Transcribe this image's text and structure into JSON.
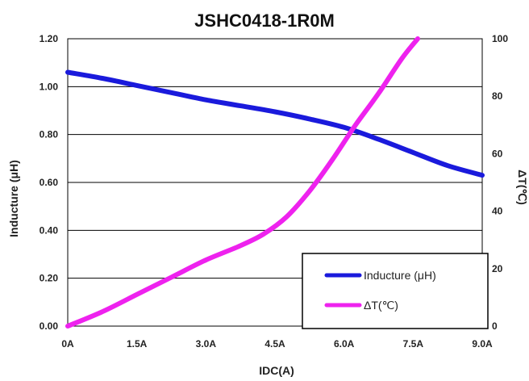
{
  "chart_data": {
    "type": "line",
    "title": "JSHC0418-1R0M",
    "xlabel": "IDC(A)",
    "ylabel": "Inducture (μH)",
    "y2label": "ΔT(℃)",
    "xlim": [
      0,
      9
    ],
    "ylim": [
      0,
      1.2
    ],
    "y2lim": [
      0,
      100
    ],
    "x_ticks": [
      0,
      1.5,
      3.0,
      4.5,
      6.0,
      7.5,
      9.0
    ],
    "x_tick_labels": [
      "0A",
      "1.5A",
      "3.0A",
      "4.5A",
      "6.0A",
      "7.5A",
      "9.0A"
    ],
    "y_ticks": [
      0,
      0.2,
      0.4,
      0.6,
      0.8,
      1.0,
      1.2
    ],
    "y_tick_labels": [
      "0.00",
      "0.20",
      "0.40",
      "0.60",
      "0.80",
      "1.00",
      "1.20"
    ],
    "y2_ticks": [
      0,
      20,
      40,
      60,
      80,
      100
    ],
    "y2_tick_labels": [
      "0",
      "20",
      "40",
      "60",
      "80",
      "100"
    ],
    "grid": "horizontal",
    "legend_position": "bottom-right",
    "series": [
      {
        "name": "Inducture (μH)",
        "axis": "left",
        "color": "#1a1adc",
        "x": [
          0,
          0.75,
          1.5,
          2.25,
          3.0,
          3.75,
          4.5,
          5.25,
          6.0,
          6.75,
          7.5,
          8.25,
          9.0
        ],
        "y": [
          1.06,
          1.035,
          1.005,
          0.975,
          0.945,
          0.92,
          0.895,
          0.865,
          0.83,
          0.78,
          0.725,
          0.67,
          0.63
        ]
      },
      {
        "name": "ΔT(℃)",
        "axis": "right",
        "color": "#ee22ee",
        "x": [
          0,
          0.75,
          1.5,
          2.25,
          3.0,
          3.75,
          4.25,
          4.75,
          5.25,
          5.75,
          6.25,
          6.75,
          7.25,
          7.6
        ],
        "y": [
          0,
          5,
          11,
          17,
          23,
          28,
          32,
          38,
          47,
          58,
          70,
          81,
          93,
          100
        ]
      }
    ]
  }
}
